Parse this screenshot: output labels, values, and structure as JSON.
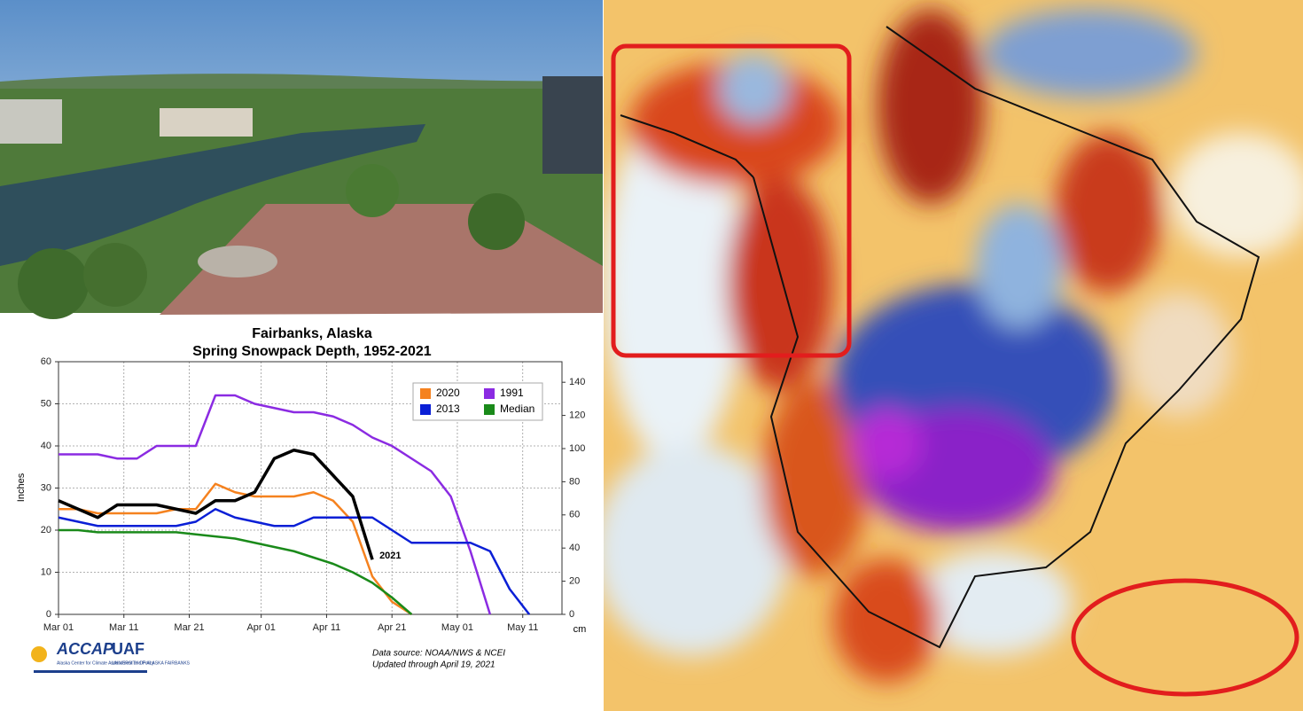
{
  "chart_data": {
    "type": "line",
    "title": "Fairbanks, Alaska",
    "subtitle": "Spring Snowpack Depth, 1952-2021",
    "y_label": "Inches",
    "y2_label": "cm",
    "annotation": "2021",
    "source": "Data source: NOAA/NWS & NCEI",
    "updated": "Updated through April 19, 2021",
    "x": [
      0,
      3,
      6,
      9,
      12,
      15,
      18,
      21,
      24,
      27,
      30,
      33,
      36,
      39,
      42,
      45,
      48,
      51,
      54,
      57,
      60,
      63,
      66,
      69,
      72,
      75
    ],
    "xlim": [
      0,
      77
    ],
    "xticks": [
      {
        "value": 0,
        "label": "Mar 01"
      },
      {
        "value": 10,
        "label": "Mar 11"
      },
      {
        "value": 20,
        "label": "Mar 21"
      },
      {
        "value": 31,
        "label": "Apr 01"
      },
      {
        "value": 41,
        "label": "Apr 11"
      },
      {
        "value": 51,
        "label": "Apr 21"
      },
      {
        "value": 61,
        "label": "May 01"
      },
      {
        "value": 71,
        "label": "May 11"
      }
    ],
    "ylim": [
      0,
      60
    ],
    "yticks": [
      0,
      10,
      20,
      30,
      40,
      50,
      60
    ],
    "y2lim": [
      0,
      152.4
    ],
    "y2ticks": [
      0,
      20,
      40,
      60,
      80,
      100,
      120,
      140
    ],
    "grid": true,
    "legend": "upper right",
    "series": [
      {
        "name": "2020",
        "color": "#f5821f",
        "values": [
          25,
          25,
          24,
          24,
          24,
          24,
          25,
          25,
          31,
          29,
          28,
          28,
          28,
          29,
          27,
          22,
          9,
          3,
          0,
          null,
          null,
          null,
          null,
          null,
          null,
          null
        ]
      },
      {
        "name": "1991",
        "color": "#8b2be2",
        "values": [
          38,
          38,
          38,
          37,
          37,
          40,
          40,
          40,
          52,
          52,
          50,
          49,
          48,
          48,
          47,
          45,
          42,
          40,
          37,
          34,
          28,
          15,
          0,
          null,
          null,
          null
        ]
      },
      {
        "name": "2013",
        "color": "#0a1fd6",
        "values": [
          23,
          22,
          21,
          21,
          21,
          21,
          21,
          22,
          25,
          23,
          22,
          21,
          21,
          23,
          23,
          23,
          23,
          20,
          17,
          17,
          17,
          17,
          15,
          6,
          0,
          null
        ]
      },
      {
        "name": "Median",
        "color": "#1a8a1a",
        "values": [
          20,
          20,
          19.5,
          19.5,
          19.5,
          19.5,
          19.5,
          19,
          18.5,
          18,
          17,
          16,
          15,
          13.5,
          12,
          10,
          7.5,
          4,
          0,
          null,
          null,
          null,
          null,
          null,
          null,
          null
        ]
      },
      {
        "color": "#000000",
        "values": [
          27,
          25,
          23,
          26,
          26,
          26,
          25,
          24,
          27,
          27,
          29,
          37,
          39,
          38,
          33,
          28,
          13,
          null,
          null,
          null,
          null,
          null,
          null,
          null,
          null,
          null
        ]
      }
    ]
  },
  "logos": {
    "accap": "ACCAP",
    "uaf": "UAF",
    "accap_name": "Alaska Center for Climate Assessment and Policy",
    "uaf_name": "UNIVERSITY OF ALASKA FAIRBANKS"
  }
}
